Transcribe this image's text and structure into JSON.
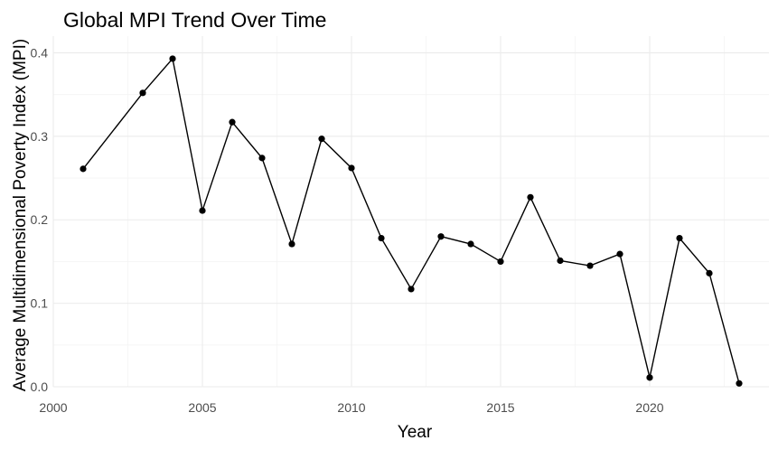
{
  "chart_data": {
    "type": "line",
    "title": "Global MPI Trend Over Time",
    "xlabel": "Year",
    "ylabel": "Average Multidimensional Poverty Index (MPI)",
    "xlim": [
      2000,
      2024
    ],
    "ylim": [
      0,
      0.42
    ],
    "x_ticks": [
      2000,
      2005,
      2010,
      2015,
      2020
    ],
    "x_tick_labels": [
      "2000",
      "2005",
      "2010",
      "2015",
      "2020"
    ],
    "y_ticks": [
      0,
      0.1,
      0.2,
      0.3,
      0.4
    ],
    "y_tick_labels": [
      "0.0",
      "0.1",
      "0.2",
      "0.3",
      "0.4"
    ],
    "grid": true,
    "legend": "none",
    "line_color": "#000000",
    "x": [
      2001,
      2003,
      2004,
      2005,
      2006,
      2007,
      2008,
      2009,
      2010,
      2011,
      2012,
      2013,
      2014,
      2015,
      2016,
      2017,
      2018,
      2019,
      2020,
      2021,
      2022,
      2023
    ],
    "y": [
      0.261,
      0.352,
      0.393,
      0.211,
      0.317,
      0.274,
      0.171,
      0.297,
      0.262,
      0.178,
      0.117,
      0.18,
      0.171,
      0.15,
      0.227,
      0.151,
      0.145,
      0.159,
      0.011,
      0.178,
      0.136,
      0.004
    ]
  }
}
